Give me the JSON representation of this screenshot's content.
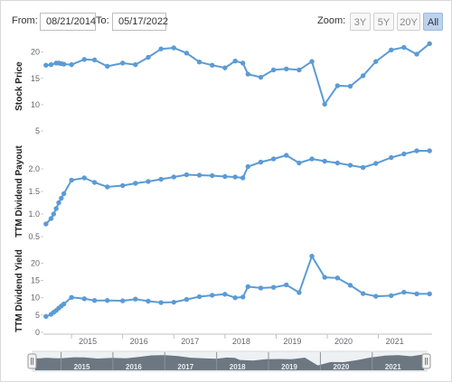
{
  "toolbar": {
    "from_label": "From:",
    "from_value": "08/21/2014",
    "to_label": "To:",
    "to_value": "05/17/2022",
    "zoom_label": "Zoom:",
    "zoom_buttons": [
      "3Y",
      "5Y",
      "20Y",
      "All"
    ],
    "zoom_active": "All"
  },
  "colors": {
    "series": "#5b9bd5",
    "navigator_fill": "#6c7781",
    "axis": "#c0c0c0"
  },
  "x_axis": {
    "range": [
      2014.45,
      2022.05
    ],
    "tick_labels": [
      "2015",
      "2016",
      "2017",
      "2018",
      "2019",
      "2020",
      "2021"
    ]
  },
  "chart_data": [
    {
      "type": "line",
      "ylabel": "Stock Price",
      "ylim": [
        5,
        22
      ],
      "yticks": [
        5,
        10,
        15,
        20
      ],
      "x": [
        2014.5,
        2014.6,
        2014.7,
        2014.75,
        2014.8,
        2014.85,
        2015.0,
        2015.25,
        2015.45,
        2015.7,
        2016.0,
        2016.25,
        2016.5,
        2016.75,
        2017.0,
        2017.25,
        2017.5,
        2017.75,
        2018.0,
        2018.2,
        2018.35,
        2018.45,
        2018.7,
        2018.95,
        2019.2,
        2019.45,
        2019.7,
        2019.95,
        2020.2,
        2020.45,
        2020.7,
        2020.95,
        2021.25,
        2021.5,
        2021.75,
        2022.0
      ],
      "values": [
        17.5,
        17.6,
        17.9,
        17.9,
        17.8,
        17.7,
        17.6,
        18.6,
        18.5,
        17.3,
        17.9,
        17.6,
        19.0,
        20.6,
        20.8,
        19.8,
        18.1,
        17.5,
        17.0,
        18.3,
        17.9,
        15.8,
        15.2,
        16.6,
        16.8,
        16.6,
        18.2,
        10.1,
        13.6,
        13.5,
        15.5,
        18.2,
        20.4,
        20.9,
        19.6,
        21.6
      ]
    },
    {
      "type": "line",
      "ylabel": "TTM Dividend Payout",
      "ylim": [
        0.5,
        2.5
      ],
      "yticks": [
        0.5,
        1.0,
        1.5,
        2.0
      ],
      "x": [
        2014.5,
        2014.6,
        2014.65,
        2014.7,
        2014.75,
        2014.8,
        2014.85,
        2015.0,
        2015.25,
        2015.45,
        2015.7,
        2016.0,
        2016.25,
        2016.5,
        2016.75,
        2017.0,
        2017.25,
        2017.5,
        2017.75,
        2018.0,
        2018.2,
        2018.35,
        2018.45,
        2018.7,
        2018.95,
        2019.2,
        2019.45,
        2019.7,
        2019.95,
        2020.2,
        2020.45,
        2020.7,
        2020.95,
        2021.25,
        2021.5,
        2021.75,
        2022.0
      ],
      "values": [
        0.78,
        0.9,
        1.0,
        1.12,
        1.25,
        1.35,
        1.45,
        1.75,
        1.8,
        1.7,
        1.6,
        1.63,
        1.68,
        1.72,
        1.77,
        1.82,
        1.87,
        1.86,
        1.85,
        1.83,
        1.82,
        1.8,
        2.05,
        2.15,
        2.22,
        2.3,
        2.13,
        2.22,
        2.17,
        2.13,
        2.08,
        2.03,
        2.12,
        2.25,
        2.33,
        2.4,
        2.4
      ]
    },
    {
      "type": "line",
      "ylabel": "TTM Dividend Yield",
      "ylim": [
        0,
        24
      ],
      "yticks": [
        0,
        5,
        10,
        15,
        20
      ],
      "x": [
        2014.5,
        2014.6,
        2014.65,
        2014.7,
        2014.75,
        2014.8,
        2014.85,
        2015.0,
        2015.25,
        2015.45,
        2015.7,
        2016.0,
        2016.25,
        2016.5,
        2016.75,
        2017.0,
        2017.25,
        2017.5,
        2017.75,
        2018.0,
        2018.2,
        2018.35,
        2018.45,
        2018.7,
        2018.95,
        2019.2,
        2019.45,
        2019.7,
        2019.95,
        2020.2,
        2020.45,
        2020.7,
        2020.95,
        2021.25,
        2021.5,
        2021.75,
        2022.0
      ],
      "values": [
        4.6,
        5.2,
        5.8,
        6.3,
        7.0,
        7.6,
        8.2,
        10.1,
        9.7,
        9.2,
        9.2,
        9.1,
        9.6,
        9.0,
        8.6,
        8.7,
        9.5,
        10.3,
        10.7,
        11.0,
        10.0,
        10.2,
        13.2,
        12.8,
        13.0,
        13.7,
        11.5,
        22.0,
        15.9,
        15.7,
        13.6,
        11.2,
        10.4,
        10.6,
        11.6,
        11.1,
        11.1
      ]
    }
  ]
}
